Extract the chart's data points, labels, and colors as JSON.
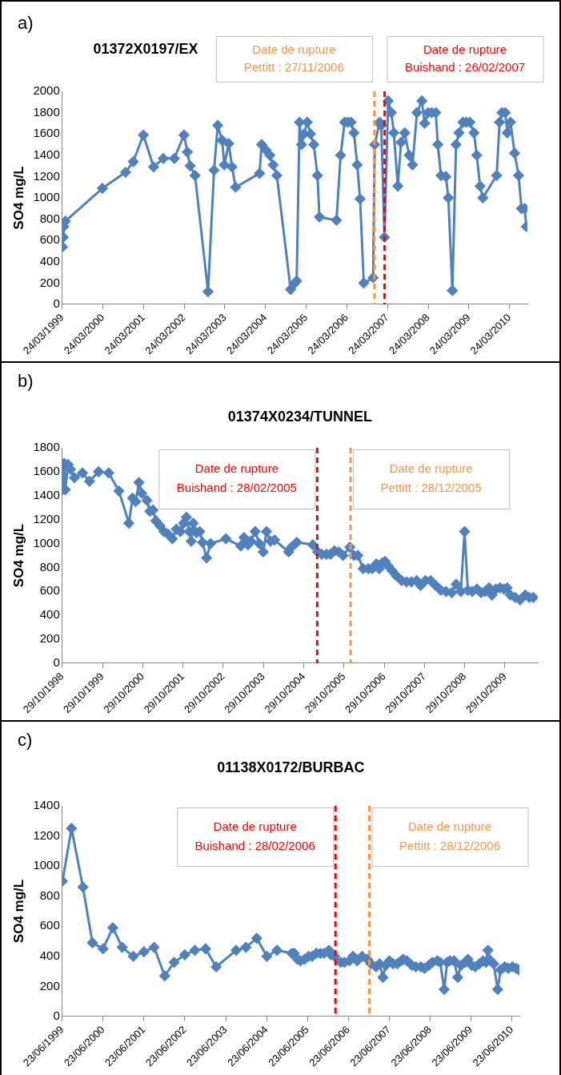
{
  "chart_data": [
    {
      "type": "line",
      "title": "01372X0197/EX",
      "ylabel": "SO4 mg/L",
      "annotations": [
        "a)"
      ],
      "marker": "diamond",
      "line_style": "solid",
      "legend": false,
      "grid": false,
      "xlim": [
        "1999-03-24",
        "2010-09-01"
      ],
      "ylim": [
        0,
        2000
      ],
      "yticks": [
        0,
        200,
        400,
        600,
        800,
        1000,
        1200,
        1400,
        1600,
        1800,
        2000
      ],
      "xticks": [
        {
          "value": "1999-03-24",
          "label": "24/03/1999"
        },
        {
          "value": "2000-03-24",
          "label": "24/03/2000"
        },
        {
          "value": "2001-03-24",
          "label": "24/03/2001"
        },
        {
          "value": "2002-03-24",
          "label": "24/03/2002"
        },
        {
          "value": "2003-03-24",
          "label": "24/03/2003"
        },
        {
          "value": "2004-03-24",
          "label": "24/03/2004"
        },
        {
          "value": "2005-03-24",
          "label": "24/03/2005"
        },
        {
          "value": "2006-03-24",
          "label": "24/03/2006"
        },
        {
          "value": "2007-03-24",
          "label": "24/03/2007"
        },
        {
          "value": "2008-03-24",
          "label": "24/03/2008"
        },
        {
          "value": "2009-03-24",
          "label": "24/03/2009"
        },
        {
          "value": "2010-03-24",
          "label": "24/03/2010"
        }
      ],
      "ref_lines": [
        {
          "axis": "x",
          "value": "2006-11-27",
          "label": "Date de rupture\nPettitt : 27/11/2006",
          "color": "#f79646",
          "line_style": "dashed"
        },
        {
          "axis": "x",
          "value": "2007-02-26",
          "label": "Date de rupture\nBuishand : 26/02/2007",
          "color": "#ff0000",
          "line_style": "dashed"
        }
      ],
      "series": [
        {
          "color": "#4f81bd",
          "x": [
            "1999-03-26",
            "1999-04-02",
            "1999-04-06",
            "1999-04-21",
            "2000-03-19",
            "2000-10-13",
            "2000-12-21",
            "2001-03-22",
            "2001-06-22",
            "2001-09-17",
            "2001-12-25",
            "2002-03-22",
            "2002-04-21",
            "2002-05-16",
            "2002-06-29",
            "2002-10-24",
            "2002-12-17",
            "2003-01-19",
            "2003-02-28",
            "2003-03-19",
            "2003-04-28",
            "2003-05-27",
            "2003-06-29",
            "2004-01-30",
            "2004-02-17",
            "2004-03-26",
            "2004-05-01",
            "2004-05-31",
            "2004-07-03",
            "2004-11-04",
            "2004-12-03",
            "2004-12-28",
            "2005-01-23",
            "2005-02-10",
            "2005-03-04",
            "2005-04-02",
            "2005-05-01",
            "2005-05-31",
            "2005-07-03",
            "2005-07-21",
            "2005-12-21",
            "2006-01-27",
            "2006-03-04",
            "2006-04-02",
            "2006-05-01",
            "2006-05-27",
            "2006-06-25",
            "2006-07-21",
            "2006-08-23",
            "2006-11-15",
            "2006-11-29",
            "2007-01-12",
            "2007-01-27",
            "2007-02-25",
            "2007-03-30",
            "2007-04-28",
            "2007-05-20",
            "2007-06-25",
            "2007-07-24",
            "2007-08-26",
            "2007-10-05",
            "2007-11-04",
            "2007-12-14",
            "2008-01-27",
            "2008-02-21",
            "2008-03-22",
            "2008-04-24",
            "2008-05-31",
            "2008-06-18",
            "2008-07-17",
            "2008-08-30",
            "2008-09-21",
            "2008-10-27",
            "2008-11-29",
            "2008-12-25",
            "2009-01-30",
            "2009-02-28",
            "2009-04-02",
            "2009-05-09",
            "2009-06-03",
            "2009-07-03",
            "2009-07-28",
            "2009-11-29",
            "2009-12-25",
            "2010-01-16",
            "2010-02-14",
            "2010-03-04",
            "2010-04-02",
            "2010-05-09",
            "2010-06-14",
            "2010-07-10",
            "2010-08-08",
            "2010-08-23"
          ],
          "values": [
            540,
            630,
            730,
            780,
            1090,
            1240,
            1340,
            1590,
            1290,
            1370,
            1370,
            1590,
            1430,
            1300,
            1210,
            120,
            1260,
            1680,
            1540,
            1310,
            1510,
            1290,
            1100,
            1230,
            1500,
            1450,
            1400,
            1310,
            1210,
            140,
            190,
            220,
            1710,
            1500,
            1600,
            1710,
            1600,
            1500,
            1210,
            820,
            790,
            1400,
            1710,
            1710,
            1710,
            1610,
            1310,
            990,
            200,
            250,
            1500,
            1710,
            1680,
            630,
            1910,
            1800,
            1610,
            1110,
            1520,
            1610,
            1400,
            1310,
            1800,
            1910,
            1700,
            1800,
            1800,
            1800,
            1500,
            1210,
            1200,
            1000,
            130,
            1500,
            1610,
            1710,
            1710,
            1710,
            1610,
            1400,
            1110,
            1000,
            1210,
            1710,
            1800,
            1800,
            1610,
            1710,
            1420,
            1210,
            900,
            900,
            730
          ]
        }
      ]
    },
    {
      "type": "line",
      "title": "01374X0234/TUNNEL",
      "ylabel": "SO4 mg/L",
      "annotations": [
        "b)"
      ],
      "marker": "diamond",
      "line_style": "solid",
      "legend": false,
      "grid": false,
      "xlim": [
        "1998-10-29",
        "2010-08-23"
      ],
      "ylim": [
        0,
        1800
      ],
      "yticks": [
        0,
        200,
        400,
        600,
        800,
        1000,
        1200,
        1400,
        1600,
        1800
      ],
      "xticks": [
        {
          "value": "1998-10-29",
          "label": "29/10/1998"
        },
        {
          "value": "1999-10-29",
          "label": "29/10/1999"
        },
        {
          "value": "2000-10-29",
          "label": "29/10/2000"
        },
        {
          "value": "2001-10-29",
          "label": "29/10/2001"
        },
        {
          "value": "2002-10-29",
          "label": "29/10/2002"
        },
        {
          "value": "2003-10-29",
          "label": "29/10/2003"
        },
        {
          "value": "2004-10-29",
          "label": "29/10/2004"
        },
        {
          "value": "2005-10-29",
          "label": "29/10/2005"
        },
        {
          "value": "2006-10-29",
          "label": "29/10/2006"
        },
        {
          "value": "2007-10-29",
          "label": "29/10/2007"
        },
        {
          "value": "2008-10-29",
          "label": "29/10/2008"
        },
        {
          "value": "2009-10-29",
          "label": "29/10/2009"
        }
      ],
      "ref_lines": [
        {
          "axis": "x",
          "value": "2005-02-28",
          "label": "Date de rupture\nBuishand : 28/02/2005",
          "color": "#ff0000",
          "line_style": "dashed"
        },
        {
          "axis": "x",
          "value": "2005-12-28",
          "label": "Date de rupture\nPettitt : 28/12/2005",
          "color": "#f79646",
          "line_style": "dashed"
        }
      ],
      "series": [
        {
          "color": "#4f81bd",
          "x": [
            "1998-10-31",
            "1998-11-07",
            "1998-11-15",
            "1998-11-26",
            "1998-12-21",
            "1999-01-12",
            "1999-02-17",
            "1999-05-01",
            "1999-07-03",
            "1999-09-24",
            "1999-12-25",
            "2000-03-26",
            "2000-06-25",
            "2000-07-28",
            "2000-08-26",
            "2000-09-24",
            "2000-10-20",
            "2000-12-06",
            "2001-01-01",
            "2001-01-30",
            "2001-02-25",
            "2001-04-02",
            "2001-05-09",
            "2001-06-14",
            "2001-07-24",
            "2001-08-30",
            "2001-10-05",
            "2001-11-04",
            "2001-11-29",
            "2001-12-25",
            "2002-01-12",
            "2002-01-30",
            "2002-02-28",
            "2002-03-30",
            "2002-04-24",
            "2002-05-31",
            "2002-07-06",
            "2002-11-22",
            "2003-04-06",
            "2003-05-05",
            "2003-06-11",
            "2003-07-06",
            "2003-08-15",
            "2003-09-21",
            "2003-10-27",
            "2003-11-26",
            "2004-01-01",
            "2004-02-07",
            "2004-06-14",
            "2004-07-10",
            "2004-08-26",
            "2005-01-19",
            "2005-03-04",
            "2005-04-10",
            "2005-05-23",
            "2005-06-29",
            "2005-08-04",
            "2005-09-14",
            "2005-10-20",
            "2005-12-21",
            "2006-01-27",
            "2006-03-04",
            "2006-04-21",
            "2006-06-07",
            "2006-07-13",
            "2006-08-19",
            "2006-09-14",
            "2006-10-13",
            "2006-11-07",
            "2006-12-06",
            "2007-01-12",
            "2007-02-17",
            "2007-04-06",
            "2007-05-20",
            "2007-07-03",
            "2007-08-19",
            "2007-09-24",
            "2007-11-07",
            "2007-12-25",
            "2008-02-07",
            "2008-03-26",
            "2008-05-12",
            "2008-07-03",
            "2008-08-12",
            "2008-09-24",
            "2008-10-27",
            "2008-11-26",
            "2009-01-05",
            "2009-02-17",
            "2009-03-26",
            "2009-05-01",
            "2009-06-07",
            "2009-07-03",
            "2009-08-08",
            "2009-09-14",
            "2009-10-20",
            "2009-11-18",
            "2009-12-17",
            "2010-01-30",
            "2010-03-15",
            "2010-05-01",
            "2010-06-07",
            "2010-07-13"
          ],
          "values": [
            1450,
            1630,
            1670,
            1450,
            1660,
            1620,
            1550,
            1590,
            1520,
            1600,
            1590,
            1440,
            1170,
            1380,
            1350,
            1510,
            1420,
            1360,
            1270,
            1280,
            1190,
            1150,
            1100,
            1080,
            1040,
            1120,
            1100,
            1170,
            1220,
            1100,
            1020,
            1170,
            1090,
            1100,
            1010,
            880,
            1000,
            1040,
            980,
            1050,
            990,
            1020,
            1100,
            1000,
            930,
            1100,
            1020,
            1030,
            930,
            970,
            1010,
            990,
            930,
            910,
            910,
            910,
            940,
            930,
            900,
            970,
            900,
            900,
            790,
            790,
            790,
            830,
            790,
            840,
            850,
            810,
            770,
            730,
            690,
            680,
            680,
            690,
            650,
            690,
            690,
            650,
            610,
            600,
            590,
            660,
            600,
            1100,
            610,
            600,
            620,
            590,
            600,
            630,
            570,
            620,
            630,
            620,
            630,
            570,
            550,
            530,
            570,
            550,
            550
          ]
        }
      ]
    },
    {
      "type": "line",
      "title": "01138X0172/BURBAC",
      "ylabel": "SO4 mg/L",
      "annotations": [
        "c)"
      ],
      "marker": "diamond",
      "line_style": "solid",
      "legend": false,
      "grid": false,
      "xlim": [
        "1999-06-23",
        "2010-08-30"
      ],
      "ylim": [
        0,
        1400
      ],
      "yticks": [
        0,
        200,
        400,
        600,
        800,
        1000,
        1200,
        1400
      ],
      "xticks": [
        {
          "value": "1999-06-23",
          "label": "23/06/1999"
        },
        {
          "value": "2000-06-23",
          "label": "23/06/2000"
        },
        {
          "value": "2001-06-23",
          "label": "23/06/2001"
        },
        {
          "value": "2002-06-23",
          "label": "23/06/2002"
        },
        {
          "value": "2003-06-23",
          "label": "23/06/2003"
        },
        {
          "value": "2004-06-23",
          "label": "23/06/2004"
        },
        {
          "value": "2005-06-23",
          "label": "23/06/2005"
        },
        {
          "value": "2006-06-23",
          "label": "23/06/2006"
        },
        {
          "value": "2007-06-23",
          "label": "23/06/2007"
        },
        {
          "value": "2008-06-23",
          "label": "23/06/2008"
        },
        {
          "value": "2009-06-23",
          "label": "23/06/2009"
        },
        {
          "value": "2010-06-23",
          "label": "23/06/2010"
        }
      ],
      "ref_lines": [
        {
          "axis": "x",
          "value": "2006-02-28",
          "label": "Date de rupture\nBuishand : 28/02/2006",
          "color": "#ff0000",
          "line_style": "dashed"
        },
        {
          "axis": "x",
          "value": "2006-12-28",
          "label": "Date de rupture\nPettitt : 28/12/2006",
          "color": "#f79646",
          "line_style": "dashed"
        }
      ],
      "series": [
        {
          "color": "#4f81bd",
          "x": [
            "1999-06-25",
            "1999-09-14",
            "1999-12-25",
            "2000-03-19",
            "2000-06-22",
            "2000-09-17",
            "2000-12-10",
            "2001-03-19",
            "2001-06-22",
            "2001-09-21",
            "2001-12-25",
            "2002-03-19",
            "2002-06-22",
            "2002-09-21",
            "2002-12-25",
            "2003-03-30",
            "2003-09-24",
            "2003-12-21",
            "2004-03-26",
            "2004-06-25",
            "2004-09-24",
            "2005-02-03",
            "2005-02-25",
            "2005-03-26",
            "2005-04-21",
            "2005-05-27",
            "2005-07-03",
            "2005-08-04",
            "2005-09-10",
            "2005-10-16",
            "2005-11-18",
            "2006-01-01",
            "2006-01-19",
            "2006-02-21",
            "2006-04-17",
            "2006-05-20",
            "2006-07-03",
            "2006-08-04",
            "2006-09-10",
            "2006-10-24",
            "2006-12-10",
            "2007-01-12",
            "2007-02-25",
            "2007-03-30",
            "2007-04-28",
            "2007-05-23",
            "2007-06-25",
            "2007-07-28",
            "2007-09-03",
            "2007-10-09",
            "2007-10-27",
            "2007-11-29",
            "2008-01-12",
            "2008-02-17",
            "2008-04-02",
            "2008-05-05",
            "2008-06-11",
            "2008-07-13",
            "2008-08-26",
            "2008-09-21",
            "2008-10-27",
            "2008-11-22",
            "2008-12-17",
            "2009-01-23",
            "2009-02-25",
            "2009-03-26",
            "2009-05-01",
            "2009-05-27",
            "2009-06-29",
            "2009-08-01",
            "2009-09-06",
            "2009-10-09",
            "2009-11-04",
            "2009-11-22",
            "2009-12-17",
            "2010-01-12",
            "2010-02-17",
            "2010-03-15",
            "2010-04-21",
            "2010-05-23",
            "2010-06-29",
            "2010-08-01",
            "2010-08-26"
          ],
          "values": [
            900,
            1250,
            860,
            490,
            450,
            590,
            460,
            400,
            430,
            460,
            270,
            360,
            410,
            440,
            450,
            330,
            440,
            460,
            520,
            400,
            440,
            420,
            420,
            380,
            370,
            380,
            400,
            400,
            420,
            420,
            420,
            440,
            410,
            400,
            360,
            360,
            370,
            400,
            370,
            400,
            380,
            350,
            330,
            350,
            260,
            340,
            370,
            350,
            350,
            370,
            380,
            370,
            340,
            330,
            330,
            320,
            340,
            360,
            370,
            360,
            180,
            360,
            370,
            370,
            260,
            340,
            360,
            380,
            340,
            330,
            350,
            370,
            360,
            440,
            370,
            350,
            180,
            310,
            330,
            320,
            330,
            320,
            310
          ]
        }
      ]
    }
  ]
}
